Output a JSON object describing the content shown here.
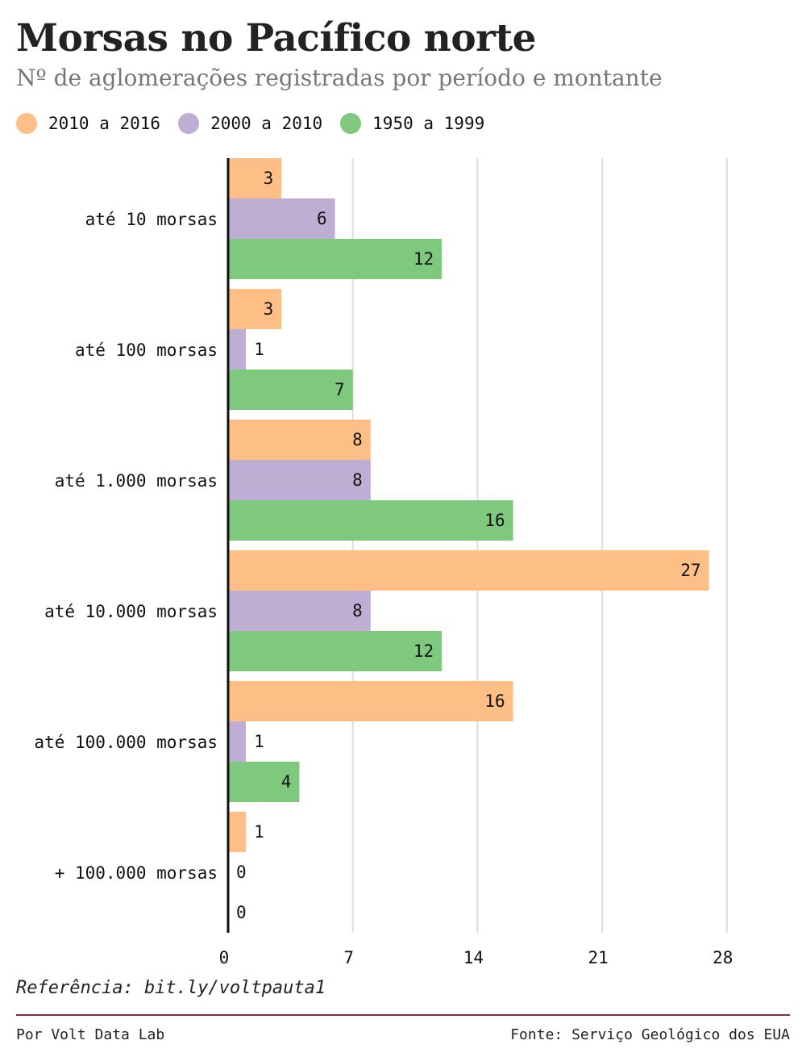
{
  "chart_data": {
    "type": "bar",
    "orientation": "horizontal",
    "title": "Morsas no Pacífico norte",
    "subtitle": "Nº de aglomerações registradas por período e montante",
    "categories": [
      "até 10 morsas",
      "até 100 morsas",
      "até 1.000 morsas",
      "até 10.000 morsas",
      "até 100.000 morsas",
      "+ 100.000 morsas"
    ],
    "series": [
      {
        "name": "2010 a 2016",
        "color": "#fdbf86",
        "values": [
          3,
          3,
          8,
          27,
          16,
          1
        ]
      },
      {
        "name": "2000 a 2010",
        "color": "#beaed4",
        "values": [
          6,
          1,
          8,
          8,
          1,
          0
        ]
      },
      {
        "name": "1950 a 1999",
        "color": "#7fc97f",
        "values": [
          12,
          7,
          16,
          12,
          4,
          0
        ]
      }
    ],
    "xticks": [
      "0",
      "7",
      "14",
      "21",
      "28"
    ],
    "xlim": [
      0,
      31
    ],
    "grid": true,
    "legend_position": "top-left"
  },
  "footer": {
    "reference": "Referência: bit.ly/voltpauta1",
    "credit": "Por Volt Data Lab",
    "source": "Fonte: Serviço Geológico dos EUA"
  },
  "colors": {
    "axis": "#111111",
    "grid": "#dddddd",
    "divider": "#9b2335"
  }
}
